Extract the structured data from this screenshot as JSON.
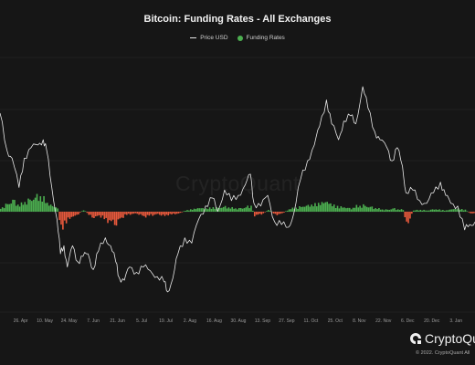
{
  "chart_data": {
    "type": "bar",
    "title": "Bitcoin: Funding Rates - All Exchanges",
    "legend": {
      "placement": "top-center",
      "entries": [
        {
          "name": "Price USD",
          "kind": "line",
          "color": "#e8e8e8"
        },
        {
          "name": "Funding Rates",
          "kind": "dot",
          "color": "#4caf50"
        }
      ]
    },
    "colors": {
      "positive": "#4caf50",
      "negative": "#e8593c",
      "price": "#e8e8e8",
      "grid": "#2a2a2a",
      "background": "#161616"
    },
    "grid": true,
    "x_tick_labels": [
      "26. Apr",
      "10. May",
      "24. May",
      "7. Jun",
      "21. Jun",
      "5. Jul",
      "19. Jul",
      "2. Aug",
      "16. Aug",
      "30. Aug",
      "13. Sep",
      "27. Sep",
      "11. Oct",
      "25. Oct",
      "8. Nov",
      "22. Nov",
      "6. Dec",
      "20. Dec",
      "3. Jan"
    ],
    "x_range": [
      "2021-04-14",
      "2022-01-14"
    ],
    "price_series": {
      "name": "Price USD",
      "ylim": [
        26000,
        74000
      ],
      "points": [
        [
          "2021-04-14",
          63500
        ],
        [
          "2021-04-18",
          56500
        ],
        [
          "2021-04-21",
          55000
        ],
        [
          "2021-04-25",
          49500
        ],
        [
          "2021-04-28",
          55000
        ],
        [
          "2021-05-02",
          57000
        ],
        [
          "2021-05-06",
          57500
        ],
        [
          "2021-05-09",
          58500
        ],
        [
          "2021-05-11",
          56500
        ],
        [
          "2021-05-14",
          49500
        ],
        [
          "2021-05-17",
          43500
        ],
        [
          "2021-05-19",
          37000
        ],
        [
          "2021-05-21",
          38500
        ],
        [
          "2021-05-23",
          34500
        ],
        [
          "2021-05-26",
          38500
        ],
        [
          "2021-05-29",
          35500
        ],
        [
          "2021-06-01",
          36500
        ],
        [
          "2021-06-04",
          37000
        ],
        [
          "2021-06-07",
          34000
        ],
        [
          "2021-06-10",
          37500
        ],
        [
          "2021-06-14",
          40000
        ],
        [
          "2021-06-17",
          38500
        ],
        [
          "2021-06-20",
          35500
        ],
        [
          "2021-06-22",
          32500
        ],
        [
          "2021-06-25",
          32000
        ],
        [
          "2021-06-28",
          34500
        ],
        [
          "2021-07-02",
          33500
        ],
        [
          "2021-07-06",
          34500
        ],
        [
          "2021-07-10",
          33800
        ],
        [
          "2021-07-14",
          32700
        ],
        [
          "2021-07-18",
          31700
        ],
        [
          "2021-07-20",
          29800
        ],
        [
          "2021-07-23",
          32300
        ],
        [
          "2021-07-26",
          37000
        ],
        [
          "2021-07-30",
          40000
        ],
        [
          "2021-08-03",
          39000
        ],
        [
          "2021-08-07",
          43500
        ],
        [
          "2021-08-11",
          46000
        ],
        [
          "2021-08-15",
          47500
        ],
        [
          "2021-08-18",
          45000
        ],
        [
          "2021-08-22",
          49000
        ],
        [
          "2021-08-26",
          47000
        ],
        [
          "2021-08-30",
          48000
        ],
        [
          "2021-09-03",
          50000
        ],
        [
          "2021-09-06",
          52000
        ],
        [
          "2021-09-08",
          46500
        ],
        [
          "2021-09-12",
          46000
        ],
        [
          "2021-09-16",
          48000
        ],
        [
          "2021-09-20",
          43000
        ],
        [
          "2021-09-24",
          42500
        ],
        [
          "2021-09-28",
          42000
        ],
        [
          "2021-10-01",
          44500
        ],
        [
          "2021-10-05",
          51000
        ],
        [
          "2021-10-09",
          54500
        ],
        [
          "2021-10-13",
          57500
        ],
        [
          "2021-10-16",
          61000
        ],
        [
          "2021-10-20",
          66000
        ],
        [
          "2021-10-23",
          61500
        ],
        [
          "2021-10-27",
          58500
        ],
        [
          "2021-10-30",
          62000
        ],
        [
          "2021-11-03",
          63000
        ],
        [
          "2021-11-06",
          61500
        ],
        [
          "2021-11-10",
          68500
        ],
        [
          "2021-11-13",
          64500
        ],
        [
          "2021-11-17",
          60000
        ],
        [
          "2021-11-20",
          58500
        ],
        [
          "2021-11-24",
          57000
        ],
        [
          "2021-11-27",
          54500
        ],
        [
          "2021-11-30",
          57000
        ],
        [
          "2021-12-03",
          53500
        ],
        [
          "2021-12-05",
          48500
        ],
        [
          "2021-12-09",
          49000
        ],
        [
          "2021-12-13",
          47000
        ],
        [
          "2021-12-17",
          46500
        ],
        [
          "2021-12-21",
          48500
        ],
        [
          "2021-12-25",
          50500
        ],
        [
          "2021-12-28",
          48000
        ],
        [
          "2021-12-31",
          46500
        ],
        [
          "2022-01-04",
          46000
        ],
        [
          "2022-01-08",
          41500
        ],
        [
          "2022-01-11",
          42500
        ],
        [
          "2022-01-14",
          43000
        ]
      ]
    },
    "funding_series": {
      "name": "Funding Rates",
      "ylim": [
        -0.1,
        0.1
      ],
      "points": [
        [
          "2021-04-14",
          0.006
        ],
        [
          "2021-04-18",
          0.012
        ],
        [
          "2021-04-21",
          0.018
        ],
        [
          "2021-04-25",
          0.01
        ],
        [
          "2021-04-28",
          0.016
        ],
        [
          "2021-05-02",
          0.02
        ],
        [
          "2021-05-06",
          0.026
        ],
        [
          "2021-05-09",
          0.021
        ],
        [
          "2021-05-11",
          0.014
        ],
        [
          "2021-05-14",
          0.009
        ],
        [
          "2021-05-17",
          0.006
        ],
        [
          "2021-05-19",
          -0.03
        ],
        [
          "2021-05-21",
          -0.022
        ],
        [
          "2021-05-23",
          -0.012
        ],
        [
          "2021-05-26",
          -0.008
        ],
        [
          "2021-05-29",
          -0.004
        ],
        [
          "2021-06-01",
          0.003
        ],
        [
          "2021-06-04",
          -0.005
        ],
        [
          "2021-06-07",
          -0.01
        ],
        [
          "2021-06-10",
          -0.006
        ],
        [
          "2021-06-14",
          -0.014
        ],
        [
          "2021-06-17",
          -0.016
        ],
        [
          "2021-06-20",
          -0.02
        ],
        [
          "2021-06-22",
          -0.012
        ],
        [
          "2021-06-25",
          -0.006
        ],
        [
          "2021-06-28",
          -0.004
        ],
        [
          "2021-07-02",
          -0.003
        ],
        [
          "2021-07-06",
          -0.008
        ],
        [
          "2021-07-10",
          -0.006
        ],
        [
          "2021-07-14",
          -0.004
        ],
        [
          "2021-07-18",
          -0.007
        ],
        [
          "2021-07-20",
          -0.005
        ],
        [
          "2021-07-23",
          -0.004
        ],
        [
          "2021-07-26",
          -0.003
        ],
        [
          "2021-07-30",
          0.002
        ],
        [
          "2021-08-03",
          0.004
        ],
        [
          "2021-08-07",
          0.006
        ],
        [
          "2021-08-11",
          0.005
        ],
        [
          "2021-08-15",
          0.007
        ],
        [
          "2021-08-18",
          0.006
        ],
        [
          "2021-08-22",
          0.008
        ],
        [
          "2021-08-26",
          0.006
        ],
        [
          "2021-08-30",
          0.005
        ],
        [
          "2021-09-03",
          0.007
        ],
        [
          "2021-09-06",
          0.01
        ],
        [
          "2021-09-08",
          -0.006
        ],
        [
          "2021-09-12",
          -0.004
        ],
        [
          "2021-09-16",
          0.003
        ],
        [
          "2021-09-20",
          -0.005
        ],
        [
          "2021-09-24",
          -0.003
        ],
        [
          "2021-09-28",
          0.004
        ],
        [
          "2021-10-01",
          0.006
        ],
        [
          "2021-10-05",
          0.008
        ],
        [
          "2021-10-09",
          0.01
        ],
        [
          "2021-10-13",
          0.012
        ],
        [
          "2021-10-16",
          0.014
        ],
        [
          "2021-10-20",
          0.016
        ],
        [
          "2021-10-23",
          0.011
        ],
        [
          "2021-10-27",
          0.008
        ],
        [
          "2021-10-30",
          0.007
        ],
        [
          "2021-11-03",
          0.005
        ],
        [
          "2021-11-06",
          0.009
        ],
        [
          "2021-11-10",
          0.01
        ],
        [
          "2021-11-13",
          0.008
        ],
        [
          "2021-11-17",
          0.006
        ],
        [
          "2021-11-20",
          0.004
        ],
        [
          "2021-11-24",
          0.003
        ],
        [
          "2021-11-27",
          0.005
        ],
        [
          "2021-11-30",
          0.004
        ],
        [
          "2021-12-03",
          0.003
        ],
        [
          "2021-12-05",
          -0.022
        ],
        [
          "2021-12-09",
          0.002
        ],
        [
          "2021-12-13",
          0.003
        ],
        [
          "2021-12-17",
          0.002
        ],
        [
          "2021-12-21",
          0.004
        ],
        [
          "2021-12-25",
          0.003
        ],
        [
          "2021-12-28",
          0.002
        ],
        [
          "2021-12-31",
          0.004
        ],
        [
          "2022-01-04",
          0.005
        ],
        [
          "2022-01-08",
          0.003
        ],
        [
          "2022-01-11",
          -0.003
        ],
        [
          "2022-01-14",
          -0.002
        ]
      ]
    }
  },
  "watermark": "CryptoQuant",
  "brand": {
    "name": "CryptoQuant",
    "copyright": "© 2022. CryptoQuant All"
  }
}
